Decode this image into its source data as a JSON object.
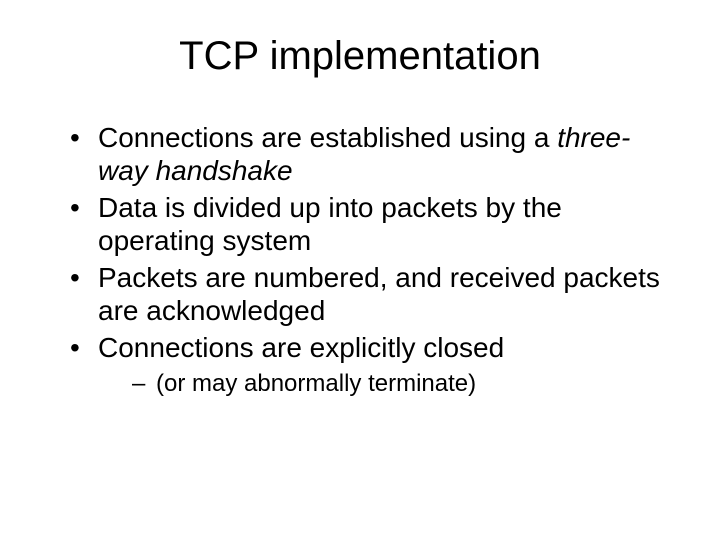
{
  "slide": {
    "title": "TCP implementation",
    "title_font": "Comic Sans MS",
    "title_fontsize": 40,
    "body_fontsize": 28,
    "sub_fontsize": 24,
    "background_color": "#ffffff",
    "text_color": "#000000",
    "bullets": [
      {
        "segments": [
          {
            "text": "Connections are established using a ",
            "italic": false
          },
          {
            "text": "three-way handshake",
            "italic": true
          }
        ]
      },
      {
        "segments": [
          {
            "text": "Data is divided up into packets by the operating system",
            "italic": false
          }
        ]
      },
      {
        "segments": [
          {
            "text": "Packets are numbered, and received packets are acknowledged",
            "italic": false
          }
        ]
      },
      {
        "segments": [
          {
            "text": "Connections are explicitly closed",
            "italic": false
          }
        ],
        "children": [
          {
            "segments": [
              {
                "text": "(or may abnormally terminate)",
                "italic": false
              }
            ]
          }
        ]
      }
    ]
  }
}
